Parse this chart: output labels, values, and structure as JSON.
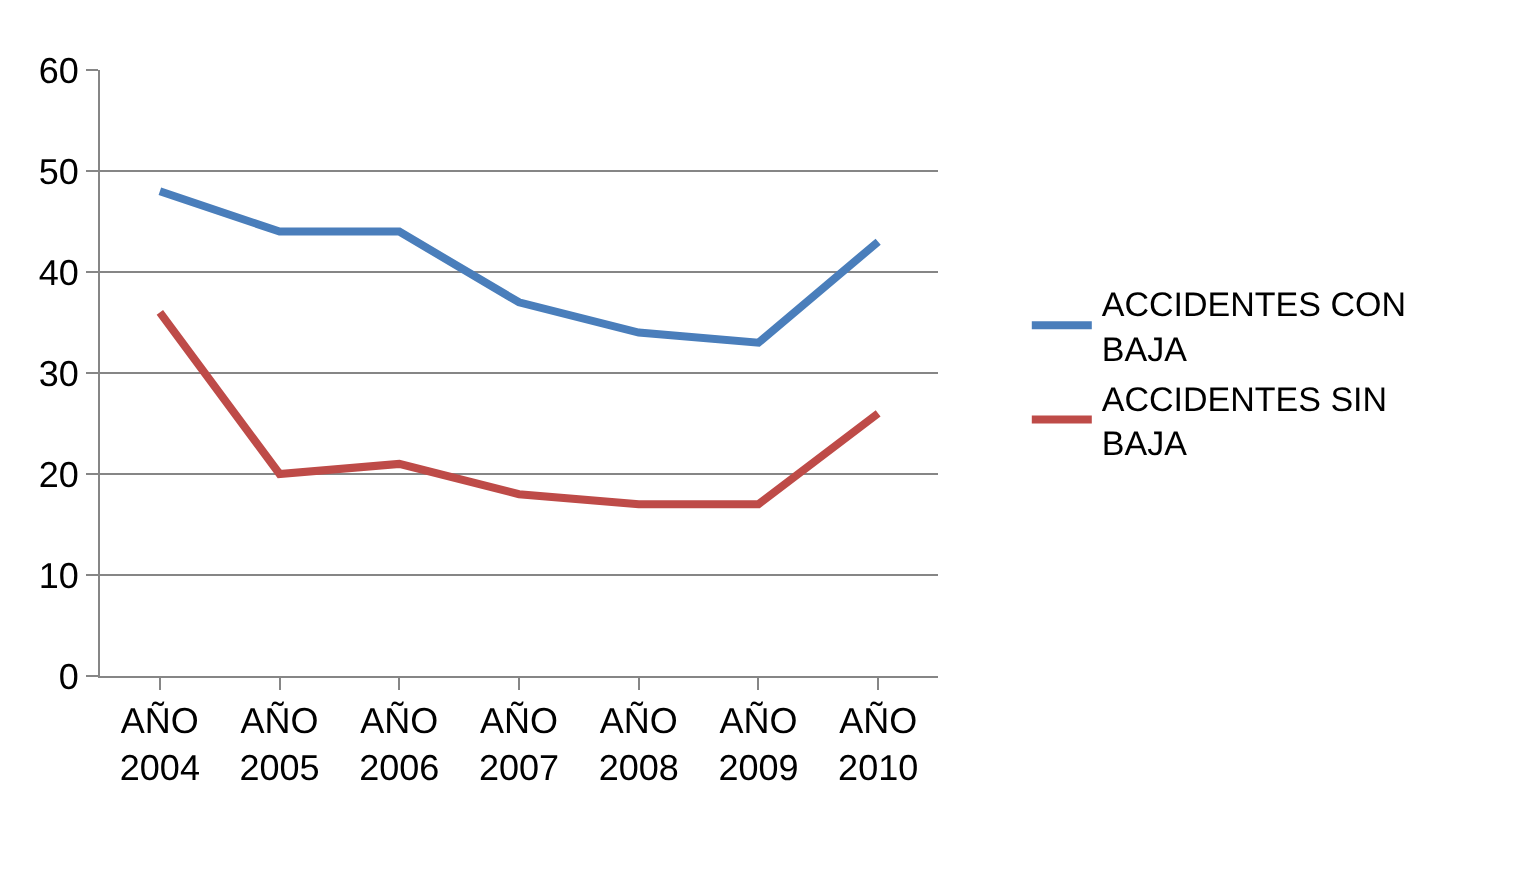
{
  "chart_data": {
    "type": "line",
    "categories": [
      "AÑO 2004",
      "AÑO 2005",
      "AÑO 2006",
      "AÑO 2007",
      "AÑO 2008",
      "AÑO 2009",
      "AÑO 2010"
    ],
    "series": [
      {
        "name": "ACCIDENTES CON BAJA",
        "color": "#4a7ebb",
        "values": [
          48,
          44,
          44,
          37,
          34,
          33,
          43
        ]
      },
      {
        "name": "ACCIDENTES SIN BAJA",
        "color": "#be4b48",
        "values": [
          36,
          20,
          21,
          18,
          17,
          17,
          26
        ]
      }
    ],
    "ylim": [
      0,
      60
    ],
    "yticks": [
      0,
      10,
      20,
      30,
      40,
      50,
      60
    ],
    "grid": "y",
    "legend": "right",
    "marker": "none",
    "line_style": "solid"
  }
}
